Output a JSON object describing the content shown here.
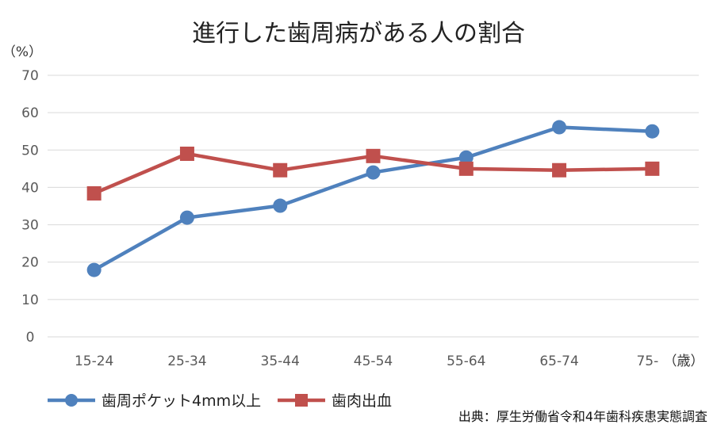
{
  "chart_data": {
    "type": "line",
    "title": "進行した歯周病がある人の割合",
    "ylabel": "（%）",
    "xlabel": "（歳）",
    "ylim": [
      0,
      70
    ],
    "yticks": [
      0,
      10,
      20,
      30,
      40,
      50,
      60,
      70
    ],
    "grid": true,
    "legend_position": "bottom-left",
    "categories": [
      "15-24",
      "25-34",
      "35-44",
      "45-54",
      "55-64",
      "65-74",
      "75-"
    ],
    "series": [
      {
        "name": "歯周ポケット4mm以上",
        "color": "#4f81bd",
        "marker": "circle",
        "values": [
          17.9,
          31.9,
          35.1,
          44.0,
          48.0,
          56.1,
          55.0
        ]
      },
      {
        "name": "歯肉出血",
        "color": "#c0504d",
        "marker": "square",
        "values": [
          38.4,
          49.0,
          44.6,
          48.4,
          45.0,
          44.6,
          45.0
        ]
      }
    ],
    "source": "出典：厚生労働省令和4年歯科疾患実態調査"
  }
}
